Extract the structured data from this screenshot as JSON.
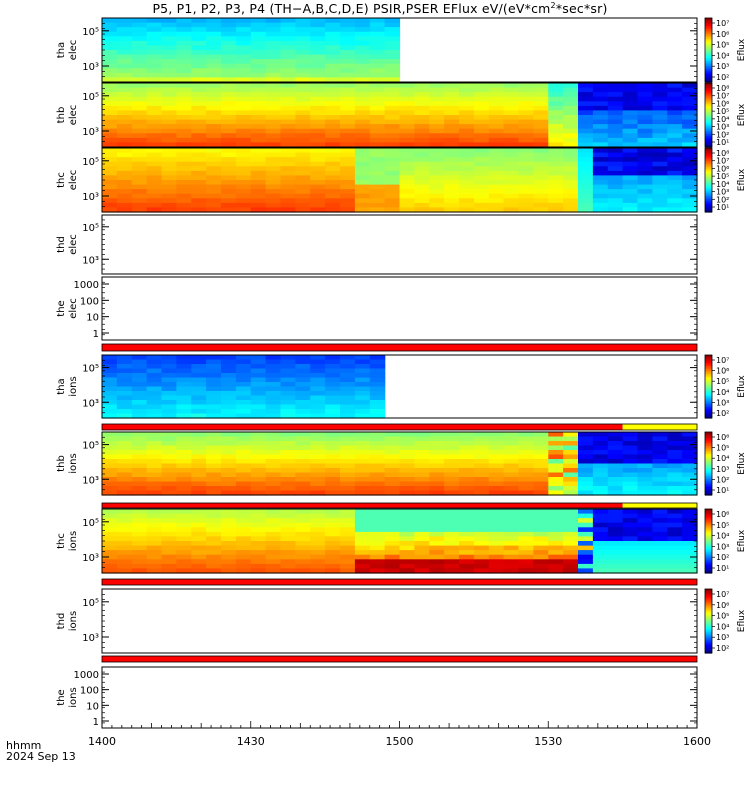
{
  "title": "P5, P1, P2, P3, P4 (TH−A,B,C,D,E) PSIR,PSER EFlux eV/(eV*cm",
  "title_sup": "2",
  "title_tail": "*sec*sr)",
  "x_label_line1": "hhmm",
  "x_label_line2": "2024 Sep 13",
  "colors": {
    "quality_bar": "#ff0000",
    "quality_bar_alt": "#ffff00"
  },
  "chart_data": {
    "type": "heatmap",
    "x_ticks": [
      "1400",
      "1430",
      "1500",
      "1530",
      "1600"
    ],
    "x_range_minutes": [
      0,
      120
    ],
    "panels": [
      {
        "id": "tha-elec",
        "ylabel": [
          "tha",
          "elec"
        ],
        "y_ticks": [
          "10⁵",
          "10³"
        ],
        "colorbar": true,
        "cbar_ticks": [
          "10⁷",
          "10⁶",
          "10⁵",
          "10⁴",
          "10³",
          "10²"
        ],
        "cbar_label": "Eflux",
        "data_end_min": 60
      },
      {
        "id": "thb-elec",
        "ylabel": [
          "thb",
          "elec"
        ],
        "y_ticks": [
          "10⁵",
          "10³"
        ],
        "colorbar": true,
        "cbar_ticks": [
          "10⁸",
          "10⁷",
          "10⁶",
          "10⁵",
          "10⁴",
          "10³",
          "10²",
          "10¹"
        ],
        "cbar_label": "Eflux",
        "data_end_min": 120
      },
      {
        "id": "thc-elec",
        "ylabel": [
          "thc",
          "elec"
        ],
        "y_ticks": [
          "10⁵",
          "10³"
        ],
        "colorbar": true,
        "cbar_ticks": [
          "10⁸",
          "10⁷",
          "10⁶",
          "10⁵",
          "10⁴",
          "10³",
          "10²",
          "10¹"
        ],
        "cbar_label": "Eflux",
        "data_end_min": 120
      },
      {
        "id": "thd-elec",
        "ylabel": [
          "thd",
          "elec"
        ],
        "y_ticks": [
          "10⁵",
          "10³"
        ],
        "colorbar": false,
        "data_end_min": 0
      },
      {
        "id": "the-elec",
        "ylabel": [
          "the",
          "elec"
        ],
        "y_ticks": [
          "1000",
          "100",
          "10",
          "1"
        ],
        "colorbar": false,
        "data_end_min": 0
      },
      {
        "id": "tha-ions",
        "ylabel": [
          "tha",
          "ions"
        ],
        "y_ticks": [
          "10⁵",
          "10³"
        ],
        "colorbar": true,
        "cbar_ticks": [
          "10⁷",
          "10⁶",
          "10⁵",
          "10⁴",
          "10³",
          "10²"
        ],
        "cbar_label": "Eflux",
        "data_end_min": 58
      },
      {
        "id": "thb-ions",
        "ylabel": [
          "thb",
          "ions"
        ],
        "y_ticks": [
          "10⁵",
          "10³"
        ],
        "colorbar": true,
        "cbar_ticks": [
          "10⁶",
          "10⁵",
          "10⁴",
          "10³",
          "10²",
          "10¹"
        ],
        "cbar_label": "Eflux",
        "data_end_min": 120
      },
      {
        "id": "thc-ions",
        "ylabel": [
          "thc",
          "ions"
        ],
        "y_ticks": [
          "10⁵",
          "10³"
        ],
        "colorbar": true,
        "cbar_ticks": [
          "10⁶",
          "10⁵",
          "10⁴",
          "10³",
          "10²",
          "10¹"
        ],
        "cbar_label": "Eflux",
        "data_end_min": 120
      },
      {
        "id": "thd-ions",
        "ylabel": [
          "thd",
          "ions"
        ],
        "y_ticks": [
          "10⁵",
          "10³"
        ],
        "colorbar": true,
        "cbar_ticks": [
          "10⁷",
          "10⁶",
          "10⁵",
          "10⁴",
          "10³",
          "10²"
        ],
        "cbar_label": "Eflux",
        "data_end_min": 0
      },
      {
        "id": "the-ions",
        "ylabel": [
          "the",
          "ions"
        ],
        "y_ticks": [
          "1000",
          "100",
          "10",
          "1"
        ],
        "colorbar": false,
        "data_end_min": 0
      }
    ]
  }
}
